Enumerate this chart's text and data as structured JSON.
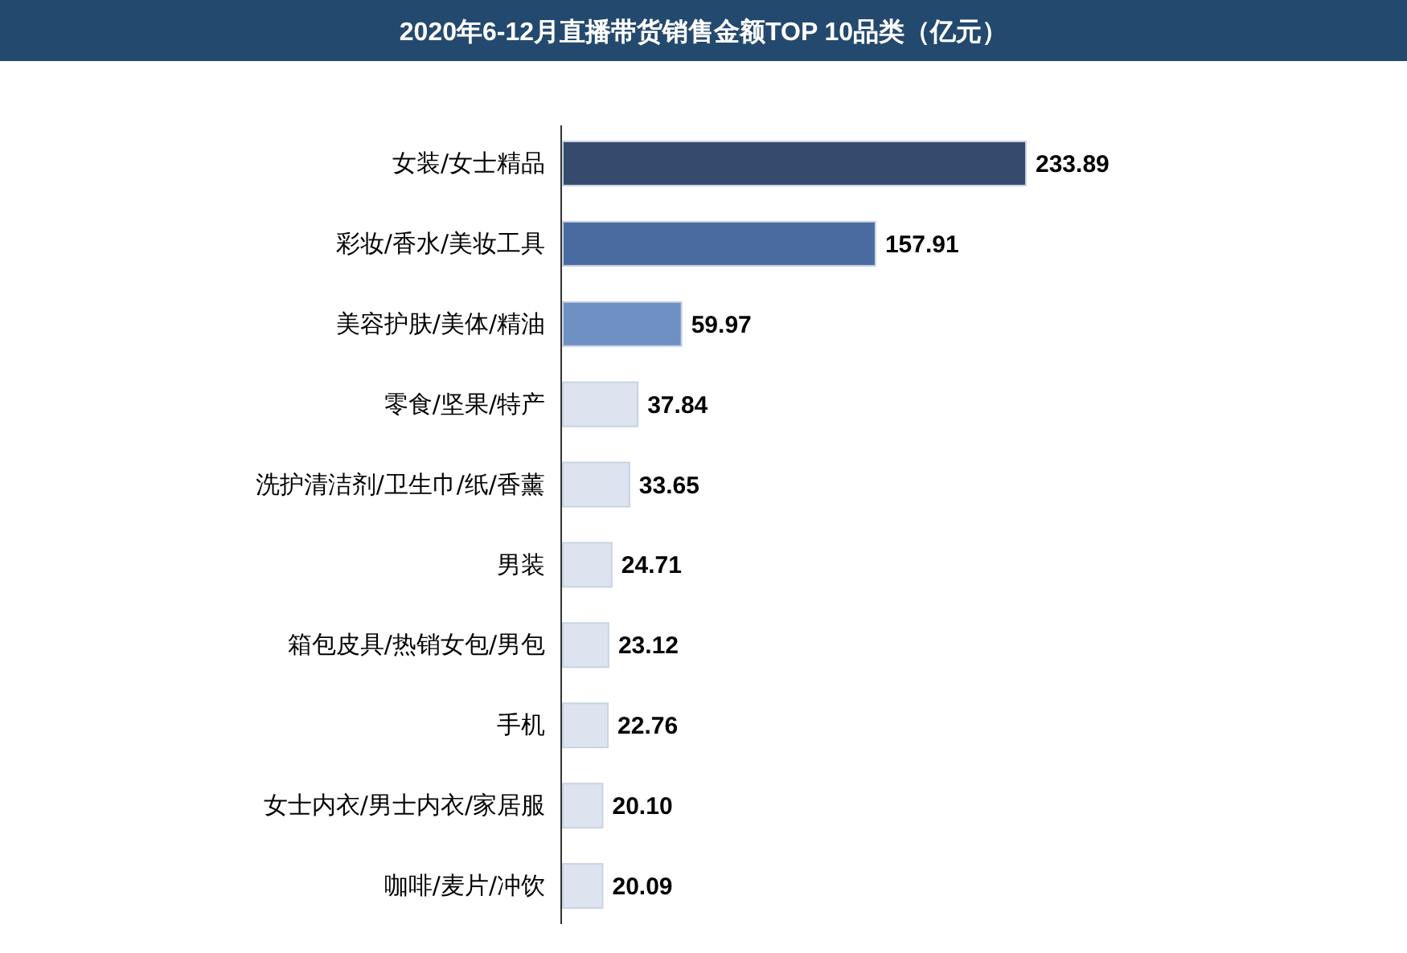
{
  "chart_data": {
    "type": "bar",
    "orientation": "horizontal",
    "title": "2020年6-12月直播带货销售金额TOP 10品类（亿元）",
    "categories": [
      "女装/女士精品",
      "彩妆/香水/美妆工具",
      "美容护肤/美体/精油",
      "零食/坚果/特产",
      "洗护清洁剂/卫生巾/纸/香薰",
      "男装",
      "箱包皮具/热销女包/男包",
      "手机",
      "女士内衣/男士内衣/家居服",
      "咖啡/麦片/冲饮"
    ],
    "values": [
      233.89,
      157.91,
      59.97,
      37.84,
      33.65,
      24.71,
      23.12,
      22.76,
      20.1,
      20.09
    ],
    "colors": [
      "#364a6e",
      "#4a6b9f",
      "#6f90c2",
      "#dde4f0",
      "#dde4f0",
      "#dde4f0",
      "#dde4f0",
      "#dde4f0",
      "#dde4f0",
      "#dde4f0"
    ],
    "value_labels": [
      "233.89",
      "157.91",
      "59.97",
      "37.84",
      "33.65",
      "24.71",
      "23.12",
      "22.76",
      "20.10",
      "20.09"
    ],
    "data_labels": false
  }
}
